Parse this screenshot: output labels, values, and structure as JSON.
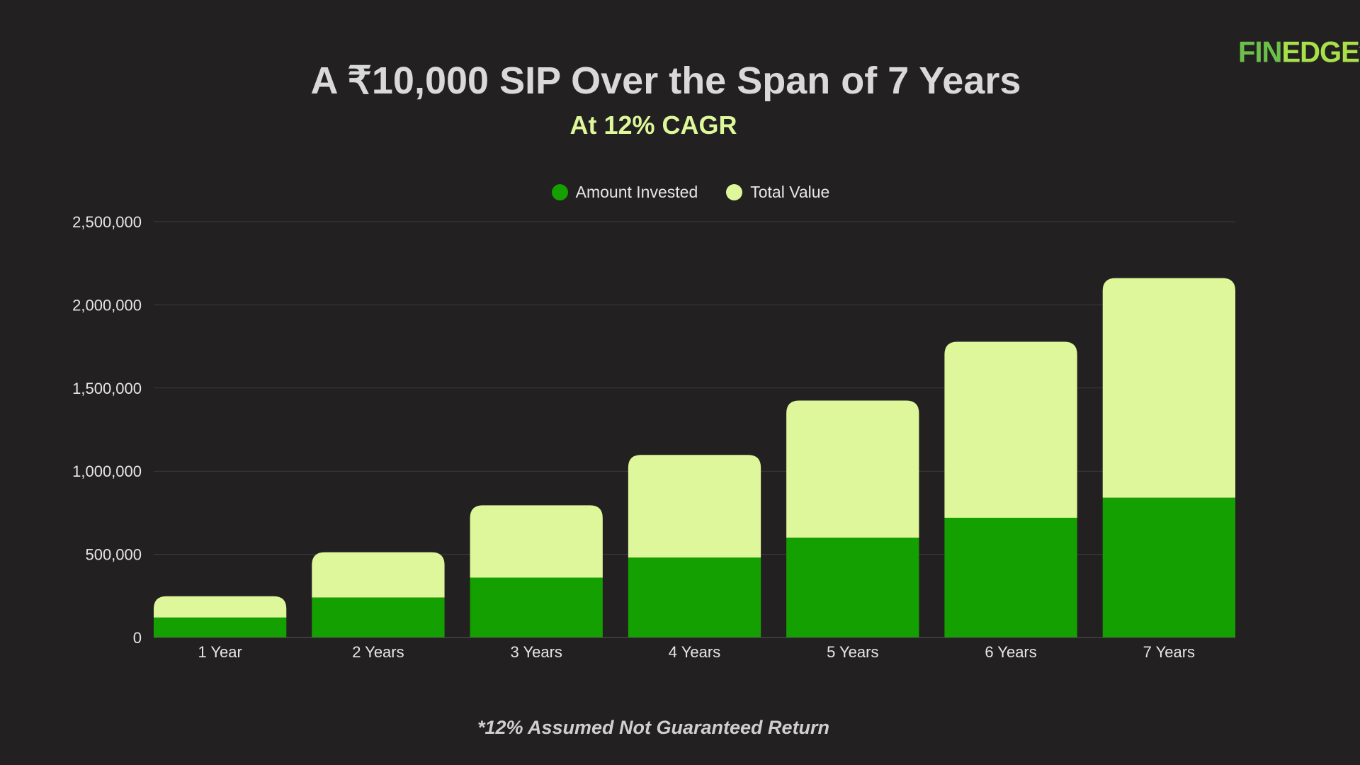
{
  "header": {
    "title": "A ₹10,000 SIP Over the Span of 7 Years",
    "subtitle": "At 12% CAGR",
    "logo_text": "FINEDGE"
  },
  "footnote": "*12% Assumed Not Guaranteed Return",
  "colors": {
    "invested": "#14a000",
    "total": "#ddf79a",
    "grid": "#3e3b3c",
    "background": "#232021"
  },
  "chart_data": {
    "type": "bar",
    "stacked": true,
    "title": "A ₹10,000 SIP Over the Span of 7 Years",
    "subtitle": "At 12% CAGR",
    "categories": [
      "1 Year",
      "2 Years",
      "3 Years",
      "4 Years",
      "5 Years",
      "6 Years",
      "7 Years"
    ],
    "series": [
      {
        "name": "Amount Invested",
        "values": [
          120000,
          240000,
          360000,
          480000,
          600000,
          720000,
          840000
        ]
      },
      {
        "name": "Total Value",
        "values": [
          128093,
          272432,
          434865,
          617891,
          824864,
          1058089,
          1320870
        ]
      }
    ],
    "yticks": [
      "0",
      "500,000",
      "1,000,000",
      "1,500,000",
      "2,000,000",
      "2,500,000"
    ],
    "ylim": [
      0,
      2500000
    ],
    "grid": true,
    "legend": "top-center",
    "xlabel": "",
    "ylabel": ""
  }
}
